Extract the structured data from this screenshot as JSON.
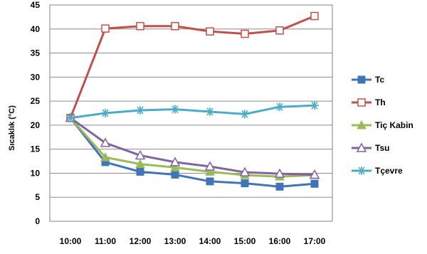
{
  "chart_data": {
    "type": "line",
    "title": "",
    "xlabel": "",
    "ylabel": "Sıcaklık (°C)",
    "x": [
      "10:00",
      "11:00",
      "12:00",
      "13:00",
      "14:00",
      "15:00",
      "16:00",
      "17:00"
    ],
    "ylim": [
      0,
      45
    ],
    "yticks": [
      0,
      5,
      10,
      15,
      20,
      25,
      30,
      35,
      40,
      45
    ],
    "grid": true,
    "legend_position": "right",
    "series": [
      {
        "name": "Tc",
        "color": "#3f74b9",
        "marker": "filled-square",
        "values": [
          21.5,
          12.3,
          10.3,
          9.7,
          8.3,
          7.9,
          7.2,
          7.8
        ]
      },
      {
        "name": "Th",
        "color": "#c0504d",
        "marker": "open-square",
        "values": [
          21.5,
          40.1,
          40.6,
          40.6,
          39.5,
          39.0,
          39.7,
          42.7
        ]
      },
      {
        "name": "Tiç Kabin",
        "color": "#9bbb59",
        "marker": "filled-triangle",
        "values": [
          21.5,
          13.3,
          11.9,
          11.2,
          10.3,
          9.6,
          9.3,
          9.6
        ]
      },
      {
        "name": "Tsu",
        "color": "#8064a2",
        "marker": "open-triangle",
        "values": [
          21.5,
          16.3,
          13.7,
          12.3,
          11.4,
          10.2,
          9.9,
          9.7
        ]
      },
      {
        "name": "Tçevre",
        "color": "#4bacc6",
        "marker": "asterisk",
        "values": [
          21.5,
          22.5,
          23.1,
          23.3,
          22.8,
          22.3,
          23.8,
          24.1
        ]
      }
    ]
  }
}
